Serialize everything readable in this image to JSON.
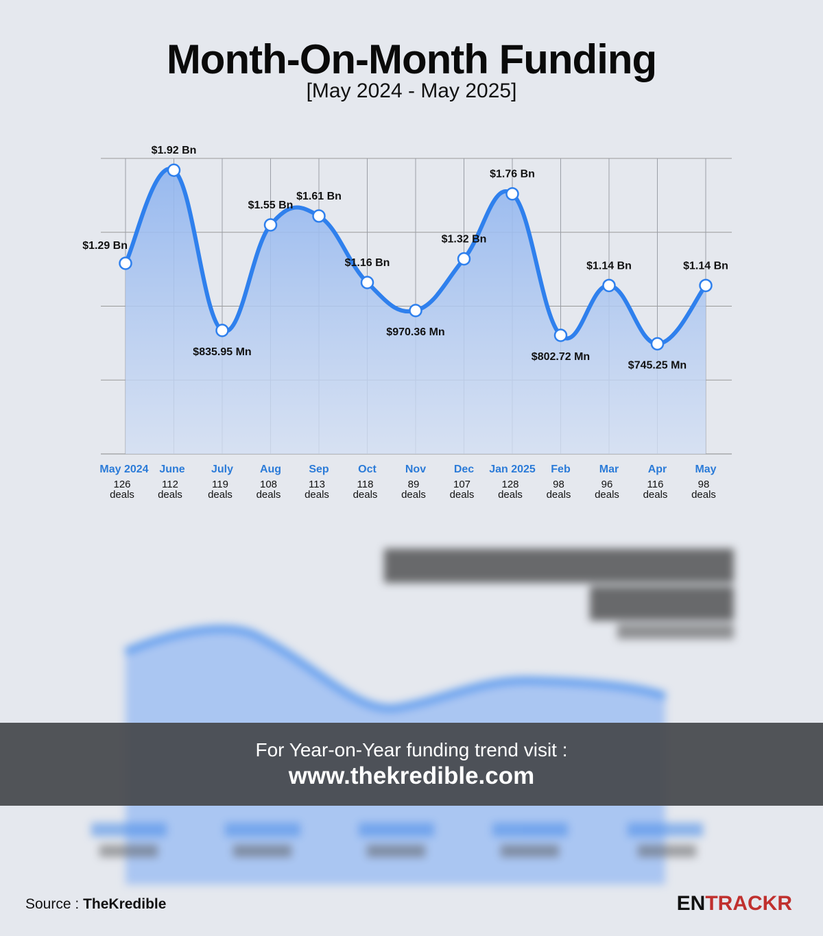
{
  "header": {
    "title": "Month-On-Month Funding",
    "subtitle": "[May 2024 - May 2025]"
  },
  "chart_data": {
    "type": "area",
    "title": "Month-On-Month Funding",
    "subtitle": "[May 2024 - May 2025]",
    "ylim": [
      0,
      2
    ],
    "y_unit": "Bn USD",
    "grid": true,
    "categories": [
      "May 2024",
      "June",
      "July",
      "Aug",
      "Sep",
      "Oct",
      "Nov",
      "Dec",
      "Jan 2025",
      "Feb",
      "Mar",
      "Apr",
      "May"
    ],
    "values": [
      1.29,
      1.92,
      0.83595,
      1.55,
      1.61,
      1.16,
      0.97036,
      1.32,
      1.76,
      0.80272,
      1.14,
      0.74525,
      1.14
    ],
    "value_labels": [
      "$1.29 Bn",
      "$1.92 Bn",
      "$835.95 Mn",
      "$1.55 Bn",
      "$1.61 Bn",
      "$1.16 Bn",
      "$970.36 Mn",
      "$1.32 Bn",
      "$1.76 Bn",
      "$802.72 Mn",
      "$1.14 Bn",
      "$745.25 Mn",
      "$1.14 Bn"
    ],
    "label_placement": [
      "left",
      "above",
      "below",
      "above",
      "above",
      "above",
      "below",
      "above",
      "above",
      "below",
      "above",
      "below",
      "above"
    ],
    "deals": [
      "126",
      "112",
      "119",
      "108",
      "113",
      "118",
      "89",
      "107",
      "128",
      "98",
      "96",
      "116",
      "98"
    ],
    "deals_suffix": "deals",
    "colors": {
      "line": "#2f80ed",
      "category": "#2b7bd8",
      "fill_top": "#8fb4ef",
      "fill_bottom": "#d3dff3"
    }
  },
  "banner": {
    "line1": "For Year-on-Year funding trend visit :",
    "line2": "www.thekredible.com"
  },
  "footer": {
    "source_label": "Source :",
    "source_name": "TheKredible",
    "logo_a": "EN",
    "logo_b": "TRACKR"
  }
}
